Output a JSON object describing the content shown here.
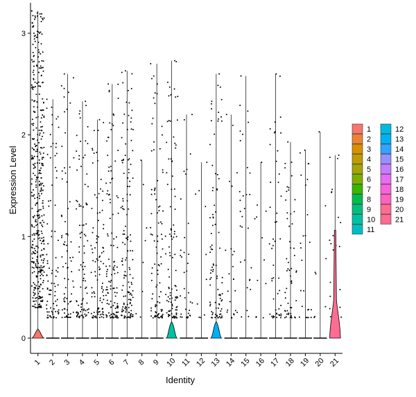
{
  "chart_data": {
    "type": "violin",
    "title": "",
    "xlabel": "Identity",
    "ylabel": "Expression Level",
    "ylim": [
      -0.15,
      3.3
    ],
    "y_ticks": [
      0,
      1,
      2,
      3
    ],
    "grid": false,
    "legend_position": "right",
    "categories": [
      "1",
      "2",
      "3",
      "4",
      "5",
      "6",
      "7",
      "8",
      "9",
      "10",
      "11",
      "12",
      "13",
      "14",
      "15",
      "16",
      "17",
      "18",
      "19",
      "20",
      "21"
    ],
    "colors": [
      "#F8766D",
      "#EB8335",
      "#D89000",
      "#C09B00",
      "#A3A500",
      "#7CAE00",
      "#39B600",
      "#00BB4E",
      "#00BF7D",
      "#00C1A3",
      "#00BFC4",
      "#00BAE0",
      "#00B0F6",
      "#35A2FF",
      "#9590FF",
      "#C77CFF",
      "#E76BF3",
      "#FA62DB",
      "#FF62BC",
      "#FF6C91",
      "#FF6C91"
    ],
    "max_values": [
      3.22,
      2.35,
      2.6,
      2.33,
      2.15,
      2.5,
      2.63,
      1.75,
      2.7,
      2.73,
      2.2,
      1.73,
      2.6,
      2.2,
      2.58,
      1.73,
      2.6,
      1.93,
      1.85,
      2.03,
      1.8
    ],
    "point_density": [
      420,
      90,
      75,
      95,
      100,
      120,
      140,
      8,
      95,
      100,
      35,
      10,
      90,
      25,
      30,
      12,
      50,
      55,
      25,
      8,
      22
    ],
    "zero_violin_height": [
      0.09,
      0,
      0,
      0,
      0,
      0,
      0,
      0,
      0,
      0.16,
      0,
      0,
      0.16,
      0,
      0,
      0,
      0,
      0,
      0,
      0,
      1.06
    ],
    "zero_violin_width": [
      0.5,
      0,
      0,
      0,
      0,
      0,
      0,
      0,
      0,
      0.45,
      0,
      0,
      0.45,
      0,
      0,
      0,
      0,
      0,
      0,
      0,
      0.45
    ],
    "legend": [
      {
        "label": "1",
        "color": "#F8766D"
      },
      {
        "label": "2",
        "color": "#EB8335"
      },
      {
        "label": "3",
        "color": "#D89000"
      },
      {
        "label": "4",
        "color": "#C09B00"
      },
      {
        "label": "5",
        "color": "#A3A500"
      },
      {
        "label": "6",
        "color": "#7CAE00"
      },
      {
        "label": "7",
        "color": "#39B600"
      },
      {
        "label": "8",
        "color": "#00BB4E"
      },
      {
        "label": "9",
        "color": "#00BF7D"
      },
      {
        "label": "10",
        "color": "#00C1A3"
      },
      {
        "label": "11",
        "color": "#00BFC4"
      },
      {
        "label": "12",
        "color": "#00BAE0"
      },
      {
        "label": "13",
        "color": "#00B0F6"
      },
      {
        "label": "14",
        "color": "#35A2FF"
      },
      {
        "label": "15",
        "color": "#9590FF"
      },
      {
        "label": "16",
        "color": "#C77CFF"
      },
      {
        "label": "17",
        "color": "#E76BF3"
      },
      {
        "label": "18",
        "color": "#FA62DB"
      },
      {
        "label": "19",
        "color": "#FF62BC"
      },
      {
        "label": "20",
        "color": "#FF6C91"
      },
      {
        "label": "21",
        "color": "#FF6C91"
      }
    ]
  }
}
